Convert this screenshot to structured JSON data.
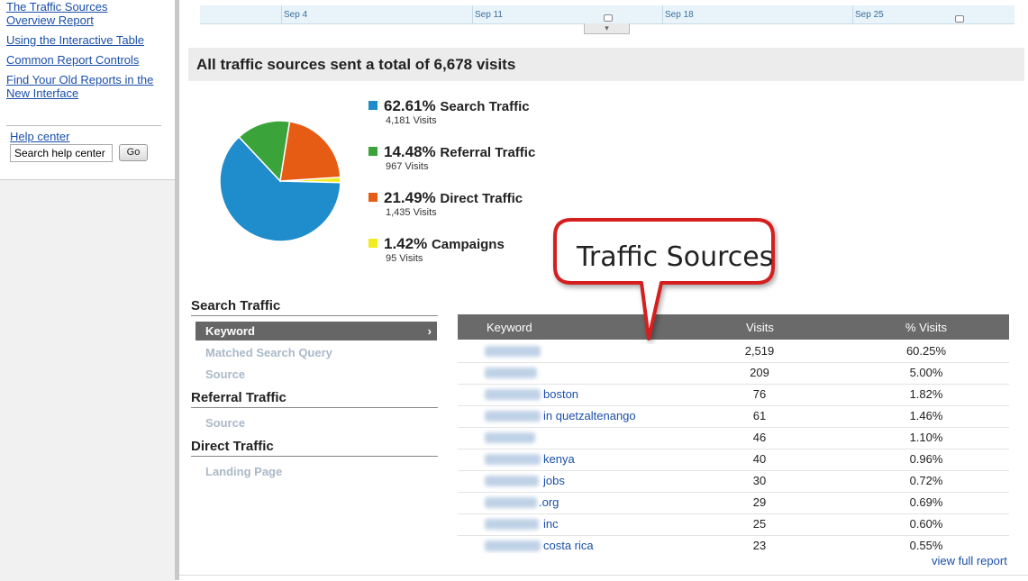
{
  "colors": {
    "search": "#1f8ccb",
    "referral": "#3aa43a",
    "direct": "#e65c15",
    "campaigns": "#f2ec1f",
    "link": "#1a4fa8",
    "callout_border": "#d51f1f"
  },
  "sidebar": {
    "links": [
      {
        "label": "The Traffic Sources"
      },
      {
        "label": "Overview Report"
      },
      {
        "label": "Using the Interactive Table"
      },
      {
        "label": "Common Report Controls"
      },
      {
        "label": "Find Your Old Reports in the"
      },
      {
        "label": "New Interface"
      }
    ],
    "help_center": "Help center",
    "search_value": "Search help center",
    "go_label": "Go"
  },
  "timeline": {
    "labels": [
      "Sep 4",
      "Sep 11",
      "Sep 18",
      "Sep 25"
    ]
  },
  "banner": {
    "title": "All traffic sources sent a total of 6,678 visits"
  },
  "chart_data": {
    "type": "pie",
    "slices": [
      {
        "name": "Search Traffic",
        "percent": 62.61,
        "visits": 4181,
        "color": "#1f8ccb"
      },
      {
        "name": "Referral Traffic",
        "percent": 14.48,
        "visits": 967,
        "color": "#3aa43a"
      },
      {
        "name": "Direct Traffic",
        "percent": 21.49,
        "visits": 1435,
        "color": "#e65c15"
      },
      {
        "name": "Campaigns",
        "percent": 1.42,
        "visits": 95,
        "color": "#f2ec1f"
      }
    ]
  },
  "legend": [
    {
      "pct": "62.61%",
      "label": "Search Traffic",
      "visits": "4,181 Visits"
    },
    {
      "pct": "14.48%",
      "label": "Referral Traffic",
      "visits": "967 Visits"
    },
    {
      "pct": "21.49%",
      "label": "Direct Traffic",
      "visits": "1,435 Visits"
    },
    {
      "pct": "1.42%",
      "label": "Campaigns",
      "visits": "95 Visits"
    }
  ],
  "nav": {
    "search_heading": "Search Traffic",
    "keyword": "Keyword",
    "chevron": "›",
    "matched": "Matched Search Query",
    "source1": "Source",
    "referral_heading": "Referral Traffic",
    "source2": "Source",
    "direct_heading": "Direct Traffic",
    "landing": "Landing Page"
  },
  "table": {
    "headers": {
      "keyword": "Keyword",
      "visits": "Visits",
      "pct": "% Visits"
    },
    "rows": [
      {
        "keyword": "",
        "visits": "2,519",
        "pct": "60.25%"
      },
      {
        "keyword": "",
        "visits": "209",
        "pct": "5.00%"
      },
      {
        "keyword": "boston",
        "visits": "76",
        "pct": "1.82%"
      },
      {
        "keyword": "in quetzaltenango",
        "visits": "61",
        "pct": "1.46%"
      },
      {
        "keyword": "",
        "visits": "46",
        "pct": "1.10%"
      },
      {
        "keyword": "kenya",
        "visits": "40",
        "pct": "0.96%"
      },
      {
        "keyword": "jobs",
        "visits": "30",
        "pct": "0.72%"
      },
      {
        "keyword": ".org",
        "visits": "29",
        "pct": "0.69%"
      },
      {
        "keyword": "inc",
        "visits": "25",
        "pct": "0.60%"
      },
      {
        "keyword": "costa rica",
        "visits": "23",
        "pct": "0.55%"
      }
    ],
    "view_full": "view full report"
  },
  "callout": {
    "text": "Traffic Sources"
  }
}
